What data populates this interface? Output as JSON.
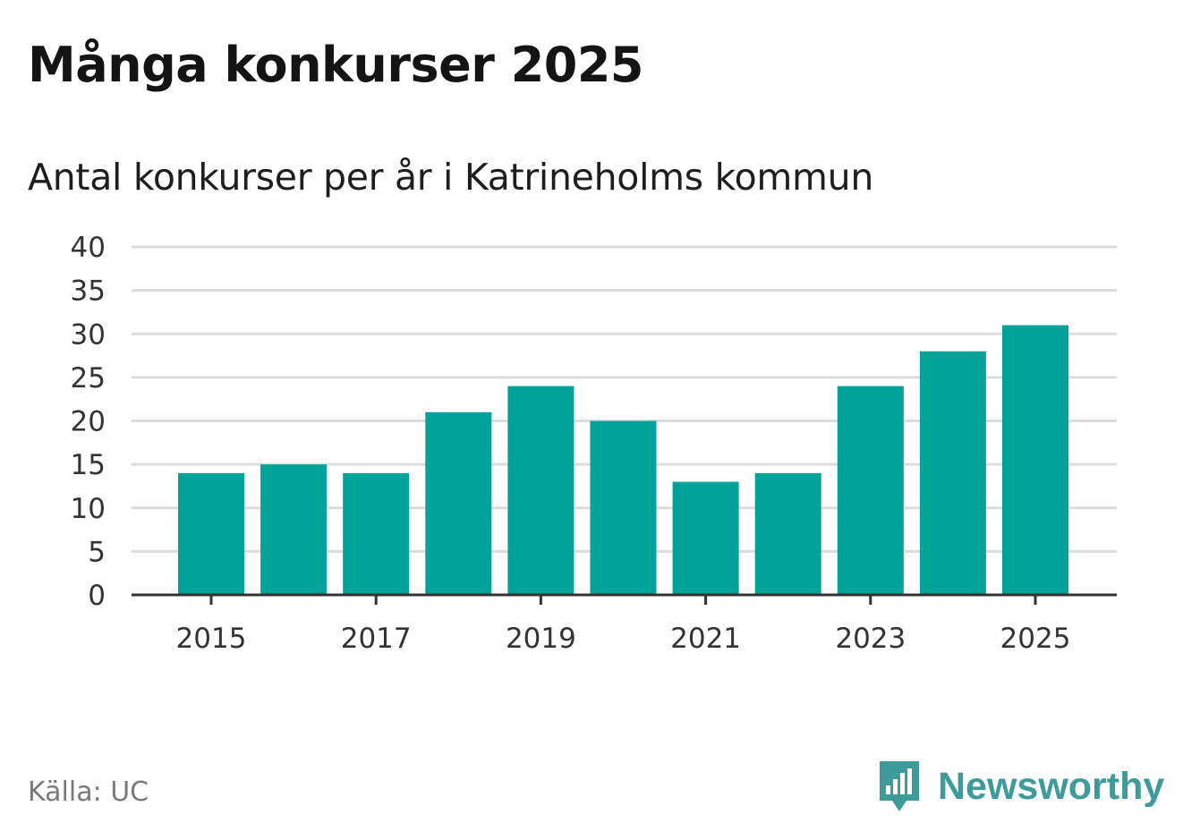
{
  "title": "Många konkurser 2025",
  "subtitle": "Antal konkurser per år i Katrineholms kommun",
  "source": "Källa: UC",
  "brand": {
    "name": "Newsworthy",
    "icon": "newsworthy-logo-icon",
    "color": "#3d9b9a"
  },
  "colors": {
    "bar": "#00a39a",
    "grid": "#dcdcdc",
    "axis": "#333333"
  },
  "chart_data": {
    "type": "bar",
    "categories": [
      "2015",
      "2016",
      "2017",
      "2018",
      "2019",
      "2020",
      "2021",
      "2022",
      "2023",
      "2024",
      "2025"
    ],
    "values": [
      14,
      15,
      14,
      21,
      24,
      20,
      13,
      14,
      24,
      28,
      31
    ],
    "x_tick_labels": [
      "2015",
      "2017",
      "2019",
      "2021",
      "2023",
      "2025"
    ],
    "y_ticks": [
      0,
      5,
      10,
      15,
      20,
      25,
      30,
      35,
      40
    ],
    "ylim": [
      0,
      40
    ],
    "grid": true,
    "legend": false
  }
}
